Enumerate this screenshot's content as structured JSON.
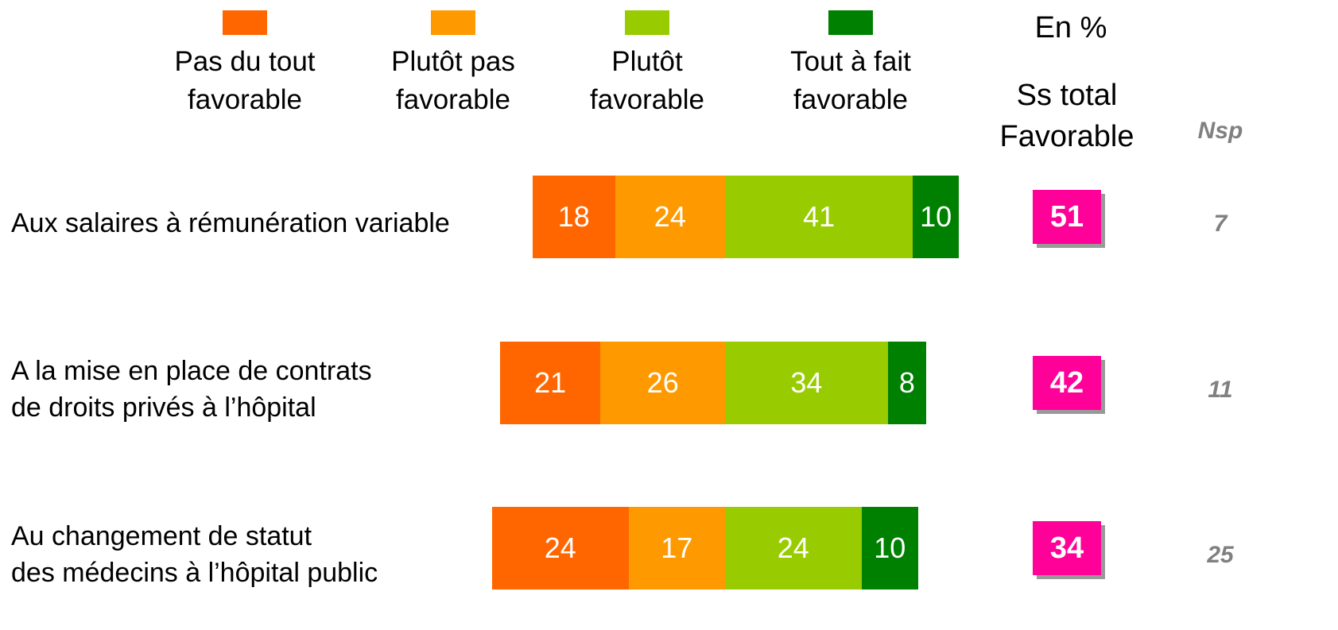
{
  "chart_data": {
    "type": "bar",
    "orientation": "horizontal",
    "stacked": true,
    "unit_note": "En %",
    "categories": [
      "Aux salaires à rémunération variable",
      "A la mise en place de contrats\n de droits privés à l’hôpital",
      "Au changement de statut\ndes médecins à l’hôpital public"
    ],
    "series": [
      {
        "name": "Pas du tout\nfavorable",
        "color": "#ff6600",
        "values": [
          18,
          21,
          24
        ]
      },
      {
        "name": "Plutôt pas\nfavorable",
        "color": "#ff9900",
        "values": [
          24,
          26,
          17
        ]
      },
      {
        "name": "Plutôt\nfavorable",
        "color": "#99cc00",
        "values": [
          41,
          34,
          24
        ]
      },
      {
        "name": "Tout à fait\nfavorable",
        "color": "#008000",
        "values": [
          10,
          8,
          10
        ]
      }
    ],
    "subtotal": {
      "title": "Ss total\nFavorable",
      "color": "#ff0099",
      "values": [
        51,
        42,
        34
      ]
    },
    "nsp": {
      "title": "Nsp",
      "values": [
        7,
        11,
        25
      ]
    }
  }
}
